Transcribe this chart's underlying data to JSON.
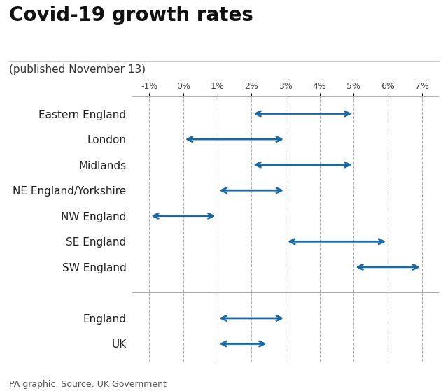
{
  "title": "Covid-19 growth rates",
  "subtitle": "(published November 13)",
  "source": "PA graphic. Source: UK Government",
  "regions": [
    "Eastern England",
    "London",
    "Midlands",
    "NE England/Yorkshire",
    "NW England",
    "SE England",
    "SW England",
    "England",
    "UK"
  ],
  "ranges": [
    [
      2.0,
      5.0
    ],
    [
      0.0,
      3.0
    ],
    [
      2.0,
      5.0
    ],
    [
      1.0,
      3.0
    ],
    [
      -1.0,
      1.0
    ],
    [
      3.0,
      6.0
    ],
    [
      5.0,
      7.0
    ],
    [
      1.0,
      3.0
    ],
    [
      1.0,
      2.5
    ]
  ],
  "arrow_color": "#1a69a4",
  "xlim": [
    -1.5,
    7.5
  ],
  "xticks": [
    -1,
    0,
    1,
    2,
    3,
    4,
    5,
    6,
    7
  ],
  "xtick_labels": [
    "-1%",
    "0%",
    "1%",
    "2%",
    "3%",
    "4%",
    "5%",
    "6%",
    "7%"
  ],
  "grid_color": "#b0b0b0",
  "background_color": "#ffffff",
  "title_fontsize": 20,
  "subtitle_fontsize": 11,
  "label_fontsize": 11,
  "tick_fontsize": 9,
  "source_fontsize": 9
}
